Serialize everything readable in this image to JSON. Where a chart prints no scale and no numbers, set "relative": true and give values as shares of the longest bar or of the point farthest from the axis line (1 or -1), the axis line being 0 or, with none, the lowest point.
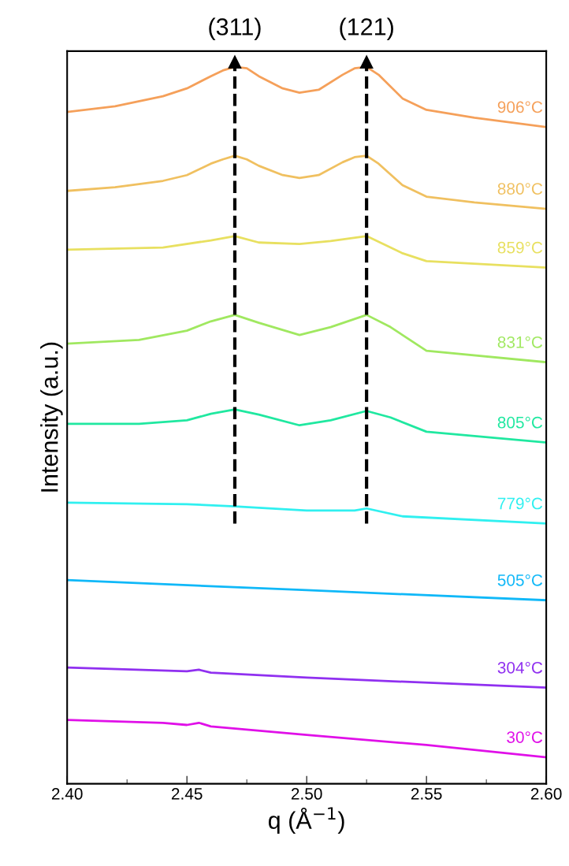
{
  "chart_data": {
    "type": "line",
    "relative": true,
    "xlabel": "q (Å$^{−1}$)",
    "ylabel": "Intensity (a.u.)",
    "xlim": [
      2.4,
      2.6
    ],
    "xticks": [
      {
        "value": 2.4,
        "label": "2.40"
      },
      {
        "value": 2.45,
        "label": "2.45"
      },
      {
        "value": 2.5,
        "label": "2.50"
      },
      {
        "value": 2.55,
        "label": "2.55"
      },
      {
        "value": 2.6,
        "label": "2.60"
      }
    ],
    "tick_labels": "x",
    "grid": false,
    "legend": false,
    "marker": "none",
    "line_style": "solid",
    "ref_lines": [
      {
        "axis": "x",
        "value": 2.47,
        "color": "#000000",
        "line_style": "dashed"
      },
      {
        "axis": "x",
        "value": 2.525,
        "color": "#000000",
        "line_style": "dashed"
      }
    ],
    "annotations": [
      "(311)",
      "(121)"
    ],
    "series": [
      {
        "name": "906°C",
        "color": "#f5a05a",
        "x": [
          2.4,
          2.42,
          2.44,
          2.45,
          2.46,
          2.465,
          2.47,
          2.475,
          2.48,
          2.49,
          2.497,
          2.505,
          2.515,
          2.52,
          2.525,
          2.53,
          2.54,
          2.55,
          2.57,
          2.6
        ],
        "values": [
          0.937,
          0.945,
          0.959,
          0.97,
          0.987,
          0.995,
          1.0,
          0.998,
          0.987,
          0.97,
          0.964,
          0.968,
          0.989,
          0.998,
          1.0,
          0.989,
          0.956,
          0.94,
          0.929,
          0.916
        ]
      },
      {
        "name": "880°C",
        "color": "#f0c060",
        "x": [
          2.4,
          2.42,
          2.44,
          2.45,
          2.46,
          2.465,
          2.47,
          2.475,
          2.48,
          2.49,
          2.497,
          2.505,
          2.515,
          2.52,
          2.525,
          2.53,
          2.54,
          2.55,
          2.57,
          2.6
        ],
        "values": [
          0.827,
          0.832,
          0.841,
          0.849,
          0.865,
          0.871,
          0.876,
          0.871,
          0.862,
          0.849,
          0.845,
          0.849,
          0.867,
          0.874,
          0.876,
          0.865,
          0.835,
          0.819,
          0.811,
          0.802
        ]
      },
      {
        "name": "859°C",
        "color": "#e8e060",
        "x": [
          2.4,
          2.44,
          2.46,
          2.47,
          2.48,
          2.497,
          2.51,
          2.525,
          2.54,
          2.55,
          2.6
        ],
        "values": [
          0.745,
          0.748,
          0.758,
          0.764,
          0.755,
          0.753,
          0.757,
          0.764,
          0.74,
          0.729,
          0.72
        ]
      },
      {
        "name": "831°C",
        "color": "#a0e860",
        "x": [
          2.4,
          2.43,
          2.45,
          2.46,
          2.47,
          2.48,
          2.497,
          2.51,
          2.525,
          2.535,
          2.55,
          2.6
        ],
        "values": [
          0.614,
          0.619,
          0.632,
          0.645,
          0.654,
          0.643,
          0.626,
          0.637,
          0.654,
          0.637,
          0.604,
          0.588
        ]
      },
      {
        "name": "805°C",
        "color": "#20e8a0",
        "x": [
          2.4,
          2.43,
          2.45,
          2.46,
          2.47,
          2.48,
          2.497,
          2.51,
          2.525,
          2.535,
          2.55,
          2.6
        ],
        "values": [
          0.502,
          0.502,
          0.507,
          0.516,
          0.522,
          0.515,
          0.5,
          0.507,
          0.52,
          0.511,
          0.491,
          0.476
        ]
      },
      {
        "name": "779°C",
        "color": "#30f0f0",
        "x": [
          2.4,
          2.45,
          2.47,
          2.48,
          2.5,
          2.52,
          2.525,
          2.54,
          2.6
        ],
        "values": [
          0.392,
          0.39,
          0.387,
          0.385,
          0.381,
          0.381,
          0.384,
          0.373,
          0.363
        ]
      },
      {
        "name": "505°C",
        "color": "#10b8f8",
        "x": [
          2.4,
          2.5,
          2.6
        ],
        "values": [
          0.284,
          0.27,
          0.256
        ]
      },
      {
        "name": "304°C",
        "color": "#9030f0",
        "x": [
          2.4,
          2.45,
          2.455,
          2.46,
          2.5,
          2.6
        ],
        "values": [
          0.162,
          0.157,
          0.159,
          0.155,
          0.148,
          0.134
        ]
      },
      {
        "name": "30°C",
        "color": "#e010e8",
        "x": [
          2.4,
          2.44,
          2.45,
          2.455,
          2.46,
          2.5,
          2.55,
          2.6
        ],
        "values": [
          0.089,
          0.085,
          0.082,
          0.085,
          0.08,
          0.068,
          0.054,
          0.037
        ]
      }
    ]
  }
}
